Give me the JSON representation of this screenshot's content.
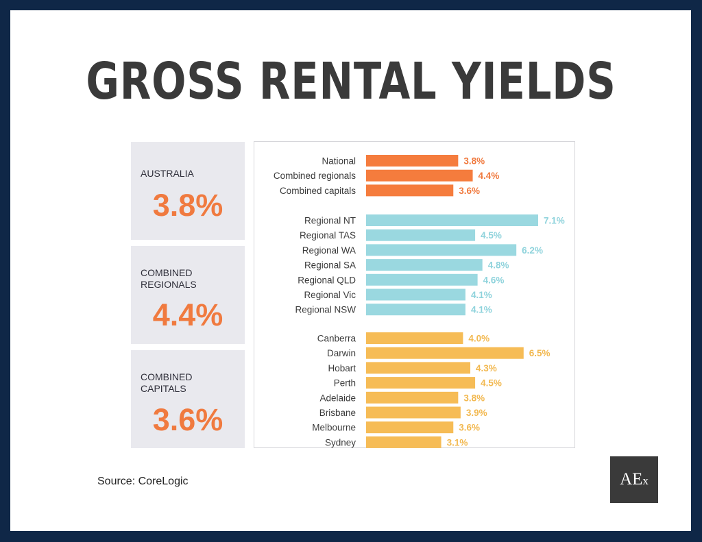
{
  "title": "GROSS RENTAL YIELDS",
  "stats": [
    {
      "label_lines": [
        "AUSTRALIA"
      ],
      "value": "3.8%"
    },
    {
      "label_lines": [
        "COMBINED",
        "REGIONALS"
      ],
      "value": "4.4%"
    },
    {
      "label_lines": [
        "COMBINED",
        "CAPITALS"
      ],
      "value": "3.6%"
    }
  ],
  "source": "Source: CoreLogic",
  "logo": {
    "main": "AE",
    "small": "x"
  },
  "colors": {
    "national": "#f57c3d",
    "regional": "#9ad8e0",
    "capital": "#f6bc56",
    "value_national": "#f07a3f",
    "value_regional": "#8fd3dc",
    "value_capital": "#f2b84f"
  },
  "chart_data": {
    "type": "bar",
    "orientation": "horizontal",
    "xlim": [
      0,
      7.1
    ],
    "groups": [
      {
        "color_key": "national",
        "categories": [
          "National",
          "Combined regionals",
          "Combined capitals"
        ],
        "values": [
          3.8,
          4.4,
          3.6
        ],
        "labels": [
          "3.8%",
          "4.4%",
          "3.6%"
        ]
      },
      {
        "color_key": "regional",
        "categories": [
          "Regional NT",
          "Regional TAS",
          "Regional WA",
          "Regional SA",
          "Regional QLD",
          "Regional Vic",
          "Regional NSW"
        ],
        "values": [
          7.1,
          4.5,
          6.2,
          4.8,
          4.6,
          4.1,
          4.1
        ],
        "labels": [
          "7.1%",
          "4.5%",
          "6.2%",
          "4.8%",
          "4.6%",
          "4.1%",
          "4.1%"
        ]
      },
      {
        "color_key": "capital",
        "categories": [
          "Canberra",
          "Darwin",
          "Hobart",
          "Perth",
          "Adelaide",
          "Brisbane",
          "Melbourne",
          "Sydney"
        ],
        "values": [
          4.0,
          6.5,
          4.3,
          4.5,
          3.8,
          3.9,
          3.6,
          3.1
        ],
        "labels": [
          "4.0%",
          "6.5%",
          "4.3%",
          "4.5%",
          "3.8%",
          "3.9%",
          "3.6%",
          "3.1%"
        ]
      }
    ]
  }
}
